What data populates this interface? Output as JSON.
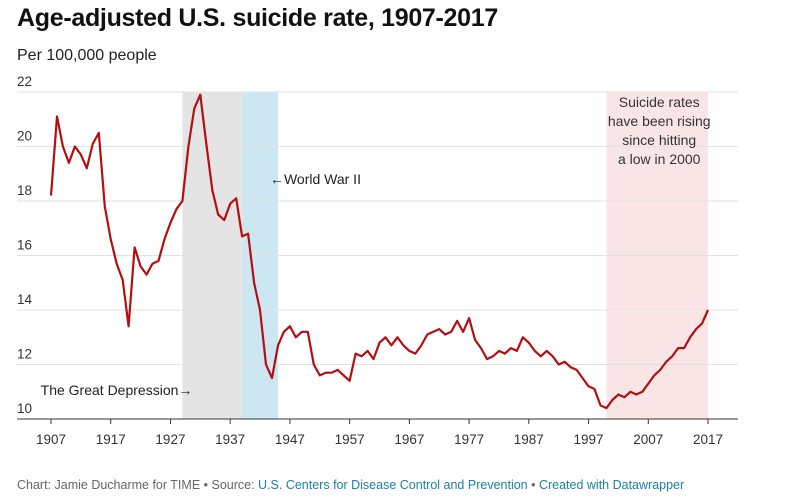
{
  "title": "Age-adjusted U.S. suicide rate, 1907-2017",
  "subtitle": "Per 100,000 people",
  "footer": {
    "chart_prefix": "Chart: Jamie Ducharme for TIME",
    "sep1": " • ",
    "source_prefix": "Source: ",
    "source_link": "U.S. Centers for Disease Control and Prevention",
    "sep2": " • ",
    "created_link": "Created with Datawrapper"
  },
  "colors": {
    "line": "#b40f10",
    "depression_band": "#e4e4e4",
    "ww2_band": "#cde7f2",
    "recent_band": "#f9e5e5",
    "grid": "#e2e2e2",
    "axis_text": "#333333"
  },
  "chart_data": {
    "type": "line",
    "title": "Age-adjusted U.S. suicide rate, 1907-2017",
    "subtitle": "Per 100,000 people",
    "xlabel": "",
    "ylabel": "",
    "xlim": [
      1907,
      2017
    ],
    "ylim": [
      10,
      22
    ],
    "yticks": [
      10,
      12,
      14,
      16,
      18,
      20,
      22
    ],
    "xticks": [
      1907,
      1917,
      1927,
      1937,
      1947,
      1957,
      1967,
      1977,
      1987,
      1997,
      2007,
      2017
    ],
    "grid": "horizontal",
    "series": [
      {
        "x": [
          1907,
          1908,
          1909,
          1910,
          1911,
          1912,
          1913,
          1914,
          1915,
          1916,
          1917,
          1918,
          1919,
          1920,
          1921,
          1922,
          1923,
          1924,
          1925,
          1926,
          1927,
          1928,
          1929,
          1930,
          1931,
          1932,
          1933,
          1934,
          1935,
          1936,
          1937,
          1938,
          1939,
          1940,
          1941,
          1942,
          1943,
          1944,
          1945,
          1946,
          1947,
          1948,
          1949,
          1950,
          1951,
          1952,
          1953,
          1954,
          1955,
          1956,
          1957,
          1958,
          1959,
          1960,
          1961,
          1962,
          1963,
          1964,
          1965,
          1966,
          1967,
          1968,
          1969,
          1970,
          1971,
          1972,
          1973,
          1974,
          1975,
          1976,
          1977,
          1978,
          1979,
          1980,
          1981,
          1982,
          1983,
          1984,
          1985,
          1986,
          1987,
          1988,
          1989,
          1990,
          1991,
          1992,
          1993,
          1994,
          1995,
          1996,
          1997,
          1998,
          1999,
          2000,
          2001,
          2002,
          2003,
          2004,
          2005,
          2006,
          2007,
          2008,
          2009,
          2010,
          2011,
          2012,
          2013,
          2014,
          2015,
          2016,
          2017
        ],
        "y": [
          18.2,
          21.1,
          20.0,
          19.4,
          20.0,
          19.7,
          19.2,
          20.1,
          20.5,
          17.8,
          16.6,
          15.7,
          15.1,
          13.4,
          16.3,
          15.6,
          15.3,
          15.7,
          15.8,
          16.6,
          17.2,
          17.7,
          18.0,
          20.0,
          21.4,
          21.9,
          20.1,
          18.4,
          17.5,
          17.3,
          17.9,
          18.1,
          16.7,
          16.8,
          15.0,
          14.0,
          12.0,
          11.5,
          12.7,
          13.2,
          13.4,
          13.0,
          13.2,
          13.2,
          12.0,
          11.6,
          11.7,
          11.7,
          11.8,
          11.6,
          11.4,
          12.4,
          12.3,
          12.5,
          12.2,
          12.8,
          13.0,
          12.7,
          13.0,
          12.7,
          12.5,
          12.4,
          12.7,
          13.1,
          13.2,
          13.3,
          13.1,
          13.2,
          13.6,
          13.2,
          13.7,
          12.9,
          12.6,
          12.2,
          12.3,
          12.5,
          12.4,
          12.6,
          12.5,
          13.0,
          12.8,
          12.5,
          12.3,
          12.5,
          12.3,
          12.0,
          12.1,
          11.9,
          11.8,
          11.5,
          11.2,
          11.1,
          10.5,
          10.4,
          10.7,
          10.9,
          10.8,
          11.0,
          10.9,
          11.0,
          11.3,
          11.6,
          11.8,
          12.1,
          12.3,
          12.6,
          12.6,
          13.0,
          13.3,
          13.5,
          14.0
        ]
      }
    ],
    "bands": [
      {
        "name": "depression",
        "from": 1929,
        "to": 1939
      },
      {
        "name": "ww2",
        "from": 1939,
        "to": 1945
      },
      {
        "name": "recent",
        "from": 2000,
        "to": 2017
      }
    ],
    "annotations": {
      "depression": "The Great Depression→",
      "ww2": "←World War II",
      "recent": [
        "Suicide rates",
        "have been rising",
        "since hitting",
        "a low in 2000"
      ]
    }
  }
}
